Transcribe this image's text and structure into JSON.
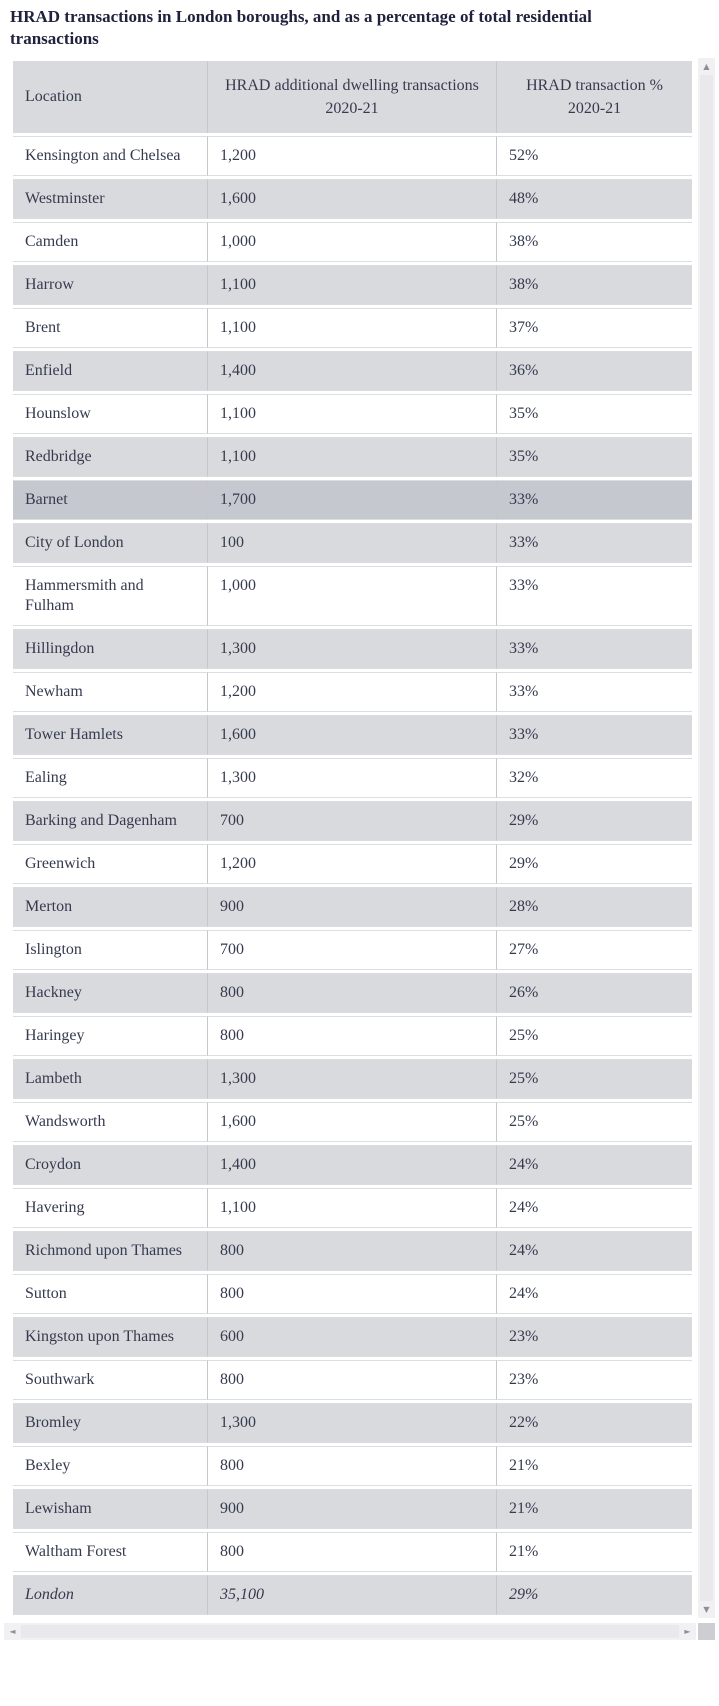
{
  "chart_data": {
    "type": "table",
    "title": "HRAD transactions in London boroughs, and as a percentage of total residential transactions",
    "columns": [
      "Location",
      "HRAD additional dwelling transactions 2020-21",
      "HRAD transaction % 2020-21"
    ],
    "rows": [
      {
        "location": "Kensington and Chelsea",
        "transactions": "1,200",
        "percent": "52%",
        "shaded": false
      },
      {
        "location": "Westminster",
        "transactions": "1,600",
        "percent": "48%",
        "shaded": true
      },
      {
        "location": "Camden",
        "transactions": "1,000",
        "percent": "38%",
        "shaded": false
      },
      {
        "location": "Harrow",
        "transactions": "1,100",
        "percent": "38%",
        "shaded": true
      },
      {
        "location": "Brent",
        "transactions": "1,100",
        "percent": "37%",
        "shaded": false
      },
      {
        "location": "Enfield",
        "transactions": "1,400",
        "percent": "36%",
        "shaded": true
      },
      {
        "location": "Hounslow",
        "transactions": "1,100",
        "percent": "35%",
        "shaded": false
      },
      {
        "location": "Redbridge",
        "transactions": "1,100",
        "percent": "35%",
        "shaded": true
      },
      {
        "location": "Barnet",
        "transactions": "1,700",
        "percent": "33%",
        "shaded": false,
        "highlighted": true
      },
      {
        "location": "City of London",
        "transactions": "100",
        "percent": "33%",
        "shaded": true
      },
      {
        "location": "Hammersmith and Fulham",
        "transactions": "1,000",
        "percent": "33%",
        "shaded": false
      },
      {
        "location": "Hillingdon",
        "transactions": "1,300",
        "percent": "33%",
        "shaded": true
      },
      {
        "location": "Newham",
        "transactions": "1,200",
        "percent": "33%",
        "shaded": false
      },
      {
        "location": "Tower Hamlets",
        "transactions": "1,600",
        "percent": "33%",
        "shaded": true
      },
      {
        "location": "Ealing",
        "transactions": "1,300",
        "percent": "32%",
        "shaded": false
      },
      {
        "location": "Barking and Dagenham",
        "transactions": "700",
        "percent": "29%",
        "shaded": true
      },
      {
        "location": "Greenwich",
        "transactions": "1,200",
        "percent": "29%",
        "shaded": false
      },
      {
        "location": "Merton",
        "transactions": "900",
        "percent": "28%",
        "shaded": true
      },
      {
        "location": "Islington",
        "transactions": "700",
        "percent": "27%",
        "shaded": false
      },
      {
        "location": "Hackney",
        "transactions": "800",
        "percent": "26%",
        "shaded": true
      },
      {
        "location": "Haringey",
        "transactions": "800",
        "percent": "25%",
        "shaded": false
      },
      {
        "location": "Lambeth",
        "transactions": "1,300",
        "percent": "25%",
        "shaded": true
      },
      {
        "location": "Wandsworth",
        "transactions": "1,600",
        "percent": "25%",
        "shaded": false
      },
      {
        "location": "Croydon",
        "transactions": "1,400",
        "percent": "24%",
        "shaded": true
      },
      {
        "location": "Havering",
        "transactions": "1,100",
        "percent": "24%",
        "shaded": false
      },
      {
        "location": "Richmond upon Thames",
        "transactions": "800",
        "percent": "24%",
        "shaded": true
      },
      {
        "location": "Sutton",
        "transactions": "800",
        "percent": "24%",
        "shaded": false
      },
      {
        "location": "Kingston upon Thames",
        "transactions": "600",
        "percent": "23%",
        "shaded": true
      },
      {
        "location": "Southwark",
        "transactions": "800",
        "percent": "23%",
        "shaded": false
      },
      {
        "location": "Bromley",
        "transactions": "1,300",
        "percent": "22%",
        "shaded": true
      },
      {
        "location": "Bexley",
        "transactions": "800",
        "percent": "21%",
        "shaded": false
      },
      {
        "location": "Lewisham",
        "transactions": "900",
        "percent": "21%",
        "shaded": true
      },
      {
        "location": "Waltham Forest",
        "transactions": "800",
        "percent": "21%",
        "shaded": false
      },
      {
        "location": "London",
        "transactions": "35,100",
        "percent": "29%",
        "shaded": true,
        "summary": true
      }
    ]
  },
  "ui": {
    "scrollbar_icons": {
      "up": "▲",
      "down": "▼",
      "left": "◄",
      "right": "►"
    }
  },
  "colors": {
    "title_text": "#20213c",
    "cell_text": "#353a4f",
    "row_shaded": "#d8dadd",
    "row_highlighted": "#c5c8ce",
    "header_bg": "#d8dadd",
    "divider": "#c6c7cc",
    "hairline": "#dcdde0",
    "scroll_track": "#f1f1f3",
    "scroll_arrow": "#8e8e93",
    "scroll_thumb": "#e9e9ec",
    "scroll_corner": "#cdced1"
  }
}
